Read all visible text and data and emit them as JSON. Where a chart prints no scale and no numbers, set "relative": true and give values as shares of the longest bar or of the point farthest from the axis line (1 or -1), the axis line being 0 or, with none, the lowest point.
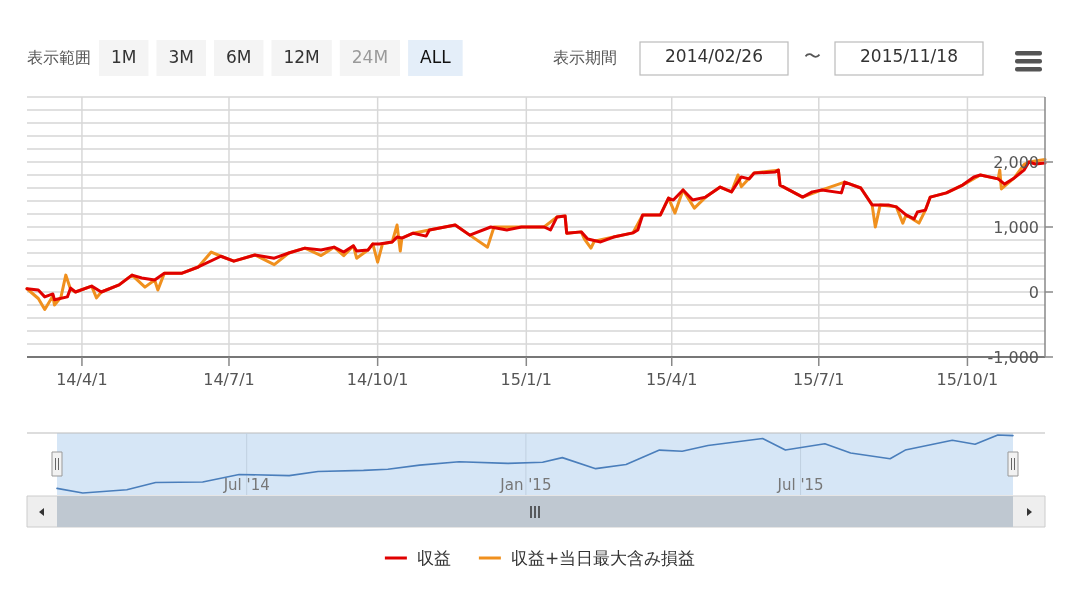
{
  "chart_data": [
    {
      "type": "line",
      "annotations": [
        "表示範囲",
        "1M",
        "3M",
        "6M",
        "12M",
        "24M",
        "ALL",
        "表示期間",
        "2014/02/26",
        "〜",
        "2015/11/18"
      ],
      "xlim": [
        "2014-02-26",
        "2015-11-18"
      ],
      "xticks": [
        {
          "value": "2014-04-01",
          "label": "14/4/1"
        },
        {
          "value": "2014-07-01",
          "label": "14/7/1"
        },
        {
          "value": "2014-10-01",
          "label": "14/10/1"
        },
        {
          "value": "2015-01-01",
          "label": "15/1/1"
        },
        {
          "value": "2015-04-01",
          "label": "15/4/1"
        },
        {
          "value": "2015-07-01",
          "label": "15/7/1"
        },
        {
          "value": "2015-10-01",
          "label": "15/10/1"
        }
      ],
      "ylim": [
        -1000,
        3000
      ],
      "yticks": [
        {
          "value": -1000,
          "label": "-1,000"
        },
        {
          "value": -800,
          "label": null
        },
        {
          "value": -600,
          "label": null
        },
        {
          "value": -400,
          "label": null
        },
        {
          "value": -200,
          "label": null
        },
        0,
        {
          "value": 200,
          "label": null
        },
        {
          "value": 400,
          "label": null
        },
        {
          "value": 600,
          "label": null
        },
        {
          "value": 800,
          "label": null
        },
        {
          "value": 1000,
          "label": "1,000"
        },
        {
          "value": 1200,
          "label": null
        },
        {
          "value": 1400,
          "label": null
        },
        {
          "value": 1600,
          "label": null
        },
        {
          "value": 1800,
          "label": null
        },
        {
          "value": 2000,
          "label": "2,000"
        },
        {
          "value": 2200,
          "label": null
        },
        {
          "value": 2400,
          "label": null
        },
        {
          "value": 2600,
          "label": null
        },
        {
          "value": 2800,
          "label": null
        }
      ],
      "grid": true,
      "legend": "bottom",
      "series": [
        {
          "name": "収益+当日最大含み損益",
          "color": "#f0901e",
          "x": [
            "2014-02-26",
            "2014-03-05",
            "2014-03-09",
            "2014-03-14",
            "2014-03-15",
            "2014-03-19",
            "2014-03-22",
            "2014-03-25",
            "2014-03-28",
            "2014-04-07",
            "2014-04-10",
            "2014-04-13",
            "2014-04-24",
            "2014-05-02",
            "2014-05-10",
            "2014-05-16",
            "2014-05-18",
            "2014-05-22",
            "2014-06-02",
            "2014-06-12",
            "2014-06-20",
            "2014-06-26",
            "2014-07-04",
            "2014-07-17",
            "2014-07-29",
            "2014-08-07",
            "2014-08-17",
            "2014-08-27",
            "2014-09-04",
            "2014-09-10",
            "2014-09-16",
            "2014-09-18",
            "2014-09-25",
            "2014-09-28",
            "2014-10-01",
            "2014-10-04",
            "2014-10-10",
            "2014-10-13",
            "2014-10-15",
            "2014-10-16",
            "2014-10-23",
            "2014-11-02",
            "2014-11-18",
            "2014-11-27",
            "2014-12-08",
            "2014-12-12",
            "2014-12-29",
            "2015-01-12",
            "2015-01-20",
            "2015-01-25",
            "2015-01-26",
            "2015-02-04",
            "2015-02-06",
            "2015-02-10",
            "2015-02-12",
            "2015-02-24",
            "2015-03-08",
            "2015-03-14",
            "2015-03-25",
            "2015-03-30",
            "2015-04-03",
            "2015-04-08",
            "2015-04-15",
            "2015-04-22",
            "2015-05-01",
            "2015-05-08",
            "2015-05-12",
            "2015-05-14",
            "2015-05-22",
            "2015-06-06",
            "2015-06-07",
            "2015-06-21",
            "2015-07-03",
            "2015-07-17",
            "2015-07-27",
            "2015-08-03",
            "2015-08-05",
            "2015-08-08",
            "2015-08-18",
            "2015-08-22",
            "2015-08-24",
            "2015-09-01",
            "2015-09-05",
            "2015-09-08",
            "2015-09-18",
            "2015-09-28",
            "2015-10-09",
            "2015-10-20",
            "2015-10-21",
            "2015-10-22",
            "2015-10-30",
            "2015-11-05",
            "2015-11-08",
            "2015-11-18"
          ],
          "values": [
            50,
            -100,
            -270,
            -60,
            -200,
            -80,
            260,
            40,
            0,
            90,
            -90,
            0,
            110,
            260,
            75,
            185,
            30,
            290,
            290,
            385,
            615,
            550,
            475,
            570,
            420,
            600,
            675,
            560,
            690,
            560,
            710,
            520,
            645,
            740,
            460,
            740,
            770,
            1030,
            630,
            830,
            905,
            955,
            1030,
            875,
            690,
            1000,
            1000,
            1000,
            1155,
            1170,
            905,
            925,
            815,
            675,
            780,
            845,
            910,
            1185,
            1185,
            1445,
            1215,
            1570,
            1290,
            1460,
            1615,
            1540,
            1800,
            1620,
            1830,
            1875,
            1645,
            1460,
            1570,
            1690,
            1600,
            1340,
            1000,
            1340,
            1310,
            1060,
            1185,
            1060,
            1260,
            1460,
            1525,
            1645,
            1800,
            1740,
            1875,
            1585,
            1755,
            1960,
            2000,
            2040
          ]
        },
        {
          "name": "収益",
          "color": "#e00000",
          "x": [
            "2014-02-26",
            "2014-03-05",
            "2014-03-09",
            "2014-03-14",
            "2014-03-15",
            "2014-03-23",
            "2014-03-25",
            "2014-03-28",
            "2014-04-07",
            "2014-04-13",
            "2014-04-24",
            "2014-05-02",
            "2014-05-08",
            "2014-05-16",
            "2014-05-22",
            "2014-06-02",
            "2014-06-12",
            "2014-06-26",
            "2014-07-04",
            "2014-07-17",
            "2014-07-29",
            "2014-08-07",
            "2014-08-17",
            "2014-08-27",
            "2014-09-04",
            "2014-09-10",
            "2014-09-16",
            "2014-09-18",
            "2014-09-25",
            "2014-09-28",
            "2014-10-02",
            "2014-10-10",
            "2014-10-13",
            "2014-10-16",
            "2014-10-23",
            "2014-10-31",
            "2014-11-02",
            "2014-11-18",
            "2014-11-27",
            "2014-12-10",
            "2014-12-20",
            "2014-12-29",
            "2015-01-12",
            "2015-01-16",
            "2015-01-20",
            "2015-01-25",
            "2015-01-26",
            "2015-02-04",
            "2015-02-08",
            "2015-02-16",
            "2015-02-24",
            "2015-03-08",
            "2015-03-11",
            "2015-03-14",
            "2015-03-25",
            "2015-03-30",
            "2015-04-02",
            "2015-04-08",
            "2015-04-14",
            "2015-04-22",
            "2015-05-01",
            "2015-05-05",
            "2015-05-08",
            "2015-05-14",
            "2015-05-19",
            "2015-05-22",
            "2015-06-04",
            "2015-06-06",
            "2015-06-07",
            "2015-06-21",
            "2015-06-27",
            "2015-07-03",
            "2015-07-15",
            "2015-07-17",
            "2015-07-27",
            "2015-08-03",
            "2015-08-13",
            "2015-08-18",
            "2015-08-24",
            "2015-08-29",
            "2015-08-31",
            "2015-09-05",
            "2015-09-08",
            "2015-09-18",
            "2015-09-28",
            "2015-10-05",
            "2015-10-09",
            "2015-10-20",
            "2015-10-24",
            "2015-10-30",
            "2015-11-05",
            "2015-11-08",
            "2015-11-12",
            "2015-11-18"
          ],
          "values": [
            50,
            30,
            -75,
            -30,
            -120,
            -75,
            60,
            0,
            90,
            0,
            110,
            260,
            215,
            185,
            290,
            290,
            385,
            550,
            475,
            570,
            520,
            600,
            675,
            645,
            690,
            615,
            710,
            630,
            645,
            740,
            740,
            770,
            845,
            830,
            905,
            860,
            955,
            1030,
            875,
            1000,
            955,
            1000,
            1000,
            955,
            1155,
            1170,
            905,
            925,
            815,
            770,
            845,
            910,
            955,
            1185,
            1185,
            1445,
            1415,
            1570,
            1415,
            1460,
            1615,
            1570,
            1540,
            1770,
            1740,
            1830,
            1845,
            1875,
            1645,
            1460,
            1540,
            1570,
            1525,
            1690,
            1600,
            1340,
            1340,
            1310,
            1185,
            1125,
            1230,
            1260,
            1460,
            1525,
            1645,
            1770,
            1800,
            1740,
            1660,
            1755,
            1875,
            2000,
            1970,
            1985
          ]
        }
      ]
    },
    {
      "type": "line",
      "relative": true,
      "tick_labels": "x",
      "grid": "x",
      "xlim": [
        "2014-02-26",
        "2015-11-18"
      ],
      "xticks": [
        {
          "value": "2014-07-01",
          "label": "Jul '14"
        },
        {
          "value": "2015-01-01",
          "label": "Jan '15"
        },
        {
          "value": "2015-07-01",
          "label": "Jul '15"
        }
      ],
      "x": [
        "2014-02-26",
        "2014-03-15",
        "2014-04-13",
        "2014-05-02",
        "2014-06-02",
        "2014-06-26",
        "2014-07-29",
        "2014-08-17",
        "2014-09-16",
        "2014-10-02",
        "2014-10-23",
        "2014-11-18",
        "2014-12-20",
        "2015-01-12",
        "2015-01-25",
        "2015-02-16",
        "2015-03-08",
        "2015-03-30",
        "2015-04-14",
        "2015-05-01",
        "2015-06-06",
        "2015-06-21",
        "2015-07-17",
        "2015-08-03",
        "2015-08-29",
        "2015-09-08",
        "2015-10-09",
        "2015-10-24",
        "2015-11-08",
        "2015-11-18"
      ],
      "series": [
        {
          "color": "#4a7ebb",
          "values": [
            0.08,
            0,
            0.057,
            0.18,
            0.19,
            0.32,
            0.3,
            0.37,
            0.39,
            0.41,
            0.48,
            0.54,
            0.51,
            0.53,
            0.61,
            0.42,
            0.49,
            0.74,
            0.72,
            0.82,
            0.94,
            0.74,
            0.85,
            0.69,
            0.59,
            0.74,
            0.91,
            0.84,
            1,
            0.99
          ]
        }
      ]
    }
  ]
}
